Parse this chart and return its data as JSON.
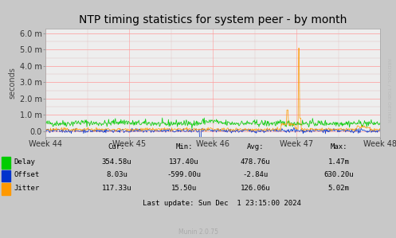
{
  "title": "NTP timing statistics for system peer - by month",
  "ylabel": "seconds",
  "bg_color": "#c8c8c8",
  "plot_bg_color": "#eeeeee",
  "grid_color_major": "#ff9999",
  "grid_color_minor": "#ddbbbb",
  "ylim": [
    -0.00035,
    0.0063
  ],
  "yticks": [
    0.0,
    0.001,
    0.002,
    0.003,
    0.004,
    0.005,
    0.006
  ],
  "ytick_labels": [
    "0.0",
    "1.0 m",
    "2.0 m",
    "3.0 m",
    "4.0 m",
    "5.0 m",
    "6.0 m"
  ],
  "xtick_labels": [
    "Week 44",
    "Week 45",
    "Week 46",
    "Week 47",
    "Week 48"
  ],
  "delay_color": "#00cc00",
  "offset_color": "#0033cc",
  "jitter_color": "#ff9900",
  "legend_items": [
    {
      "label": "Delay",
      "color": "#00cc00"
    },
    {
      "label": "Offset",
      "color": "#0033cc"
    },
    {
      "label": "Jitter",
      "color": "#ff9900"
    }
  ],
  "stats": [
    [
      "Delay",
      "354.58u",
      "137.40u",
      "478.76u",
      "1.47m"
    ],
    [
      "Offset",
      "8.03u",
      "-599.00u",
      "-2.84u",
      "630.20u"
    ],
    [
      "Jitter",
      "117.33u",
      "15.50u",
      "126.06u",
      "5.02m"
    ]
  ],
  "last_update": "Last update: Sun Dec  1 23:15:00 2024",
  "munin_version": "Munin 2.0.75",
  "rrdtool_label": "RRDTOOL / TOBI OETIKER",
  "watermark_color": "#bbbbbb",
  "title_fontsize": 10,
  "axis_label_fontsize": 7,
  "tick_fontsize": 7,
  "stats_fontsize": 6.5,
  "seed": 42,
  "n_points": 600
}
